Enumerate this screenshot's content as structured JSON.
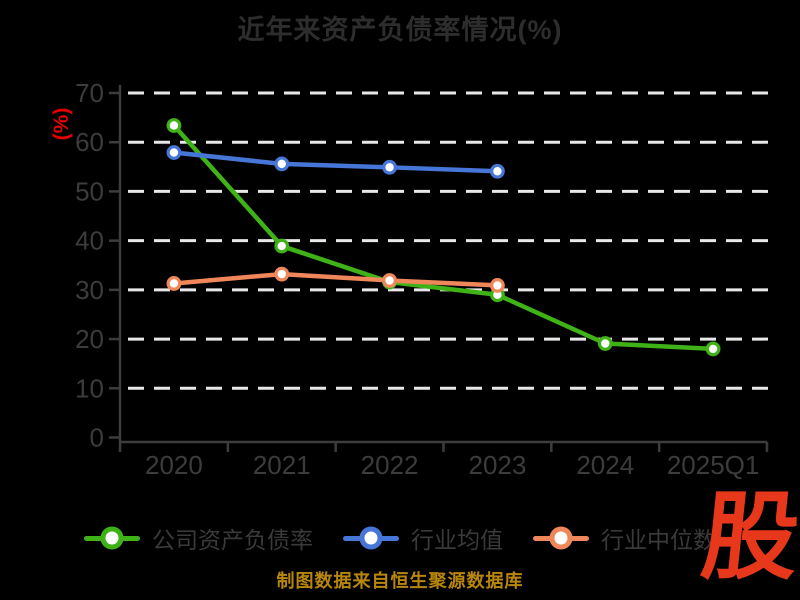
{
  "title": "近年来资产负债率情况(%)",
  "y_axis_label": "(%)",
  "source_note": "制图数据来自恒生聚源数据库",
  "watermark_text": "股",
  "colors": {
    "background": "#000000",
    "title_text": "#2d2d2d",
    "axis": "#3c3c3c",
    "tick_label": "#3c3c3c",
    "gridline": "#e8e8e8",
    "y_unit_label": "#e60000",
    "source_text": "#b8860b",
    "watermark": "#e8381c",
    "marker_fill": "#ffffff"
  },
  "chart_data": {
    "type": "line",
    "title": "近年来资产负债率情况(%)",
    "xlabel": "",
    "ylabel": "(%)",
    "categories": [
      "2020",
      "2021",
      "2022",
      "2023",
      "2024",
      "2025Q1"
    ],
    "series": [
      {
        "name": "公司资产负债率",
        "color": "#3fb218",
        "values": [
          63.4,
          38.9,
          31.6,
          29.0,
          19.1,
          18.0
        ]
      },
      {
        "name": "行业均值",
        "color": "#4677d8",
        "values": [
          57.9,
          55.6,
          54.9,
          54.1,
          null,
          null
        ]
      },
      {
        "name": "行业中位数",
        "color": "#f0875a",
        "values": [
          31.3,
          33.2,
          31.9,
          30.9,
          null,
          null
        ]
      }
    ],
    "ylim": [
      0,
      70
    ],
    "y_ticks": [
      0,
      10,
      20,
      30,
      40,
      50,
      60,
      70
    ],
    "grid": "horizontal-dashed-white",
    "legend_position": "bottom",
    "marker_style": "hollow-circle"
  },
  "legend": {
    "items": [
      {
        "label": "公司资产负债率"
      },
      {
        "label": "行业均值"
      },
      {
        "label": "行业中位数"
      }
    ]
  }
}
